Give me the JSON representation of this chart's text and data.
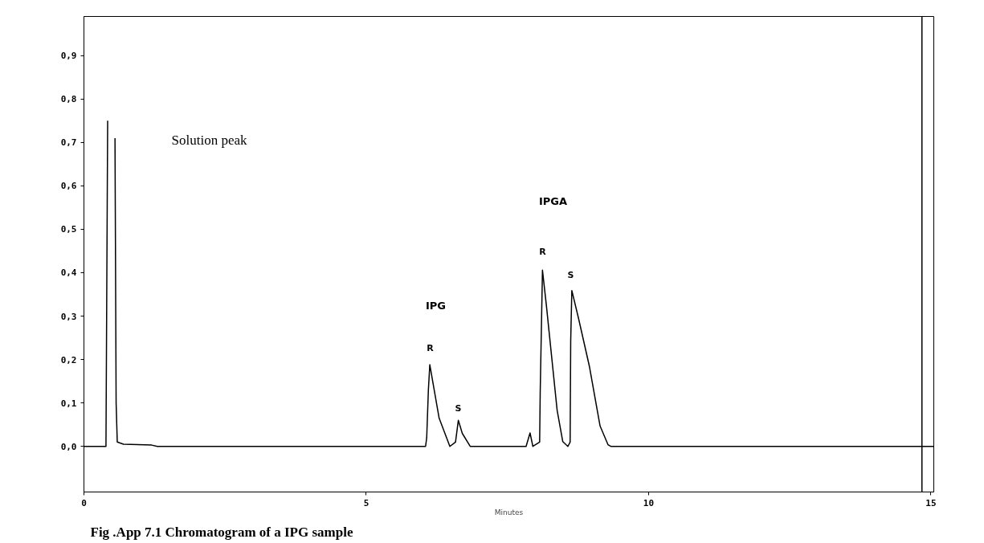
{
  "chart_data": {
    "type": "line",
    "xlabel": "Minutes",
    "x": [
      0,
      0.39,
      0.4,
      0.42,
      0.44,
      0.52,
      0.55,
      0.57,
      0.59,
      0.7,
      1.2,
      1.3,
      6.05,
      6.07,
      6.1,
      6.125,
      6.29,
      6.48,
      6.58,
      6.63,
      6.7,
      6.84,
      7.83,
      7.9,
      7.95,
      8.07,
      8.08,
      8.12,
      8.19,
      8.38,
      8.48,
      8.57,
      8.61,
      8.62,
      8.64,
      8.76,
      8.95,
      9.14,
      9.28,
      9.33,
      15.05
    ],
    "series": [
      {
        "color": "#000000",
        "values": [
          0,
          0,
          0.25,
          0.75,
          null,
          null,
          0.71,
          0.1,
          0.01,
          0.005,
          0.003,
          0,
          0,
          0.02,
          0.131,
          0.188,
          0.065,
          0,
          0.01,
          0.06,
          0.03,
          0,
          0,
          0.031,
          0,
          0.01,
          0.125,
          0.406,
          0.324,
          0.083,
          0.011,
          0,
          0.01,
          0.243,
          0.359,
          0.294,
          0.185,
          0.047,
          0.004,
          0,
          0
        ]
      }
    ],
    "xlim": [
      0,
      15.05
    ],
    "ylim": [
      -0.105,
      0.99
    ],
    "xticks": [
      0,
      5,
      10,
      15
    ],
    "yticks": [
      {
        "value": 0,
        "label": "0,0"
      },
      {
        "value": 0.1,
        "label": "0,1"
      },
      {
        "value": 0.2,
        "label": "0,2"
      },
      {
        "value": 0.3,
        "label": "0,3"
      },
      {
        "value": 0.4,
        "label": "0,4"
      },
      {
        "value": 0.5,
        "label": "0,5"
      },
      {
        "value": 0.6,
        "label": "0,6"
      },
      {
        "value": 0.7,
        "label": "0,7"
      },
      {
        "value": 0.8,
        "label": "0,8"
      },
      {
        "value": 0.9,
        "label": "0,9"
      }
    ],
    "ref_lines": [
      {
        "axis": "x",
        "value": 14.84,
        "color": "#000000"
      }
    ],
    "grid": false,
    "marker": "none",
    "line_style": "solid",
    "annotations": [
      "Solution peak",
      "IPG",
      "R",
      "S",
      "IPGA",
      "R",
      "S",
      "Fig .App 7.1 Chromatogram of a IPG sample"
    ]
  }
}
